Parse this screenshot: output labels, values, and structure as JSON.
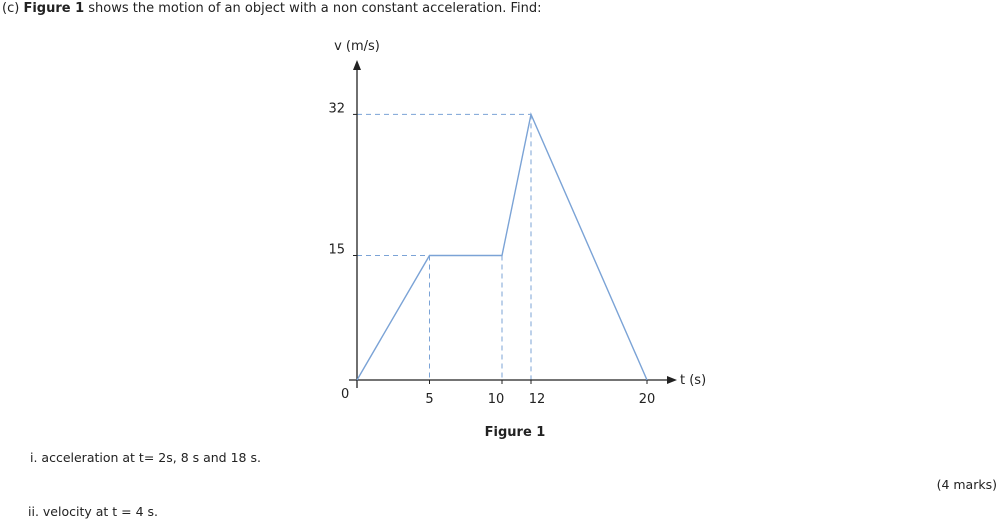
{
  "question": {
    "prefix": "(c) ",
    "bold": "Figure 1",
    "rest": " shows the motion of an object with a non constant acceleration. Find:"
  },
  "chart_data": {
    "type": "line",
    "ylabel": "v (m/s)",
    "xlabel": "t (s)",
    "caption": "Figure 1",
    "origin_label": "0",
    "x_ticks": [
      5,
      10,
      12,
      20
    ],
    "y_ticks": [
      15,
      32
    ],
    "xlim": [
      0,
      20
    ],
    "ylim": [
      0,
      32
    ],
    "series": [
      {
        "x": [
          0,
          5,
          10,
          12,
          20
        ],
        "y": [
          0,
          15,
          15,
          32,
          0
        ]
      }
    ],
    "guides": [
      {
        "x": 5,
        "y": 15
      },
      {
        "x": 10,
        "y": 15
      },
      {
        "x": 12,
        "y": 32
      }
    ],
    "line_color": "#7ba3d6",
    "axis_color": "#222222"
  },
  "parts": [
    {
      "label": "i. acceleration at t= 2s, 8 s and 18 s."
    },
    {
      "label": "ii. velocity at t  = 4 s."
    }
  ],
  "marks": "(4 marks)"
}
